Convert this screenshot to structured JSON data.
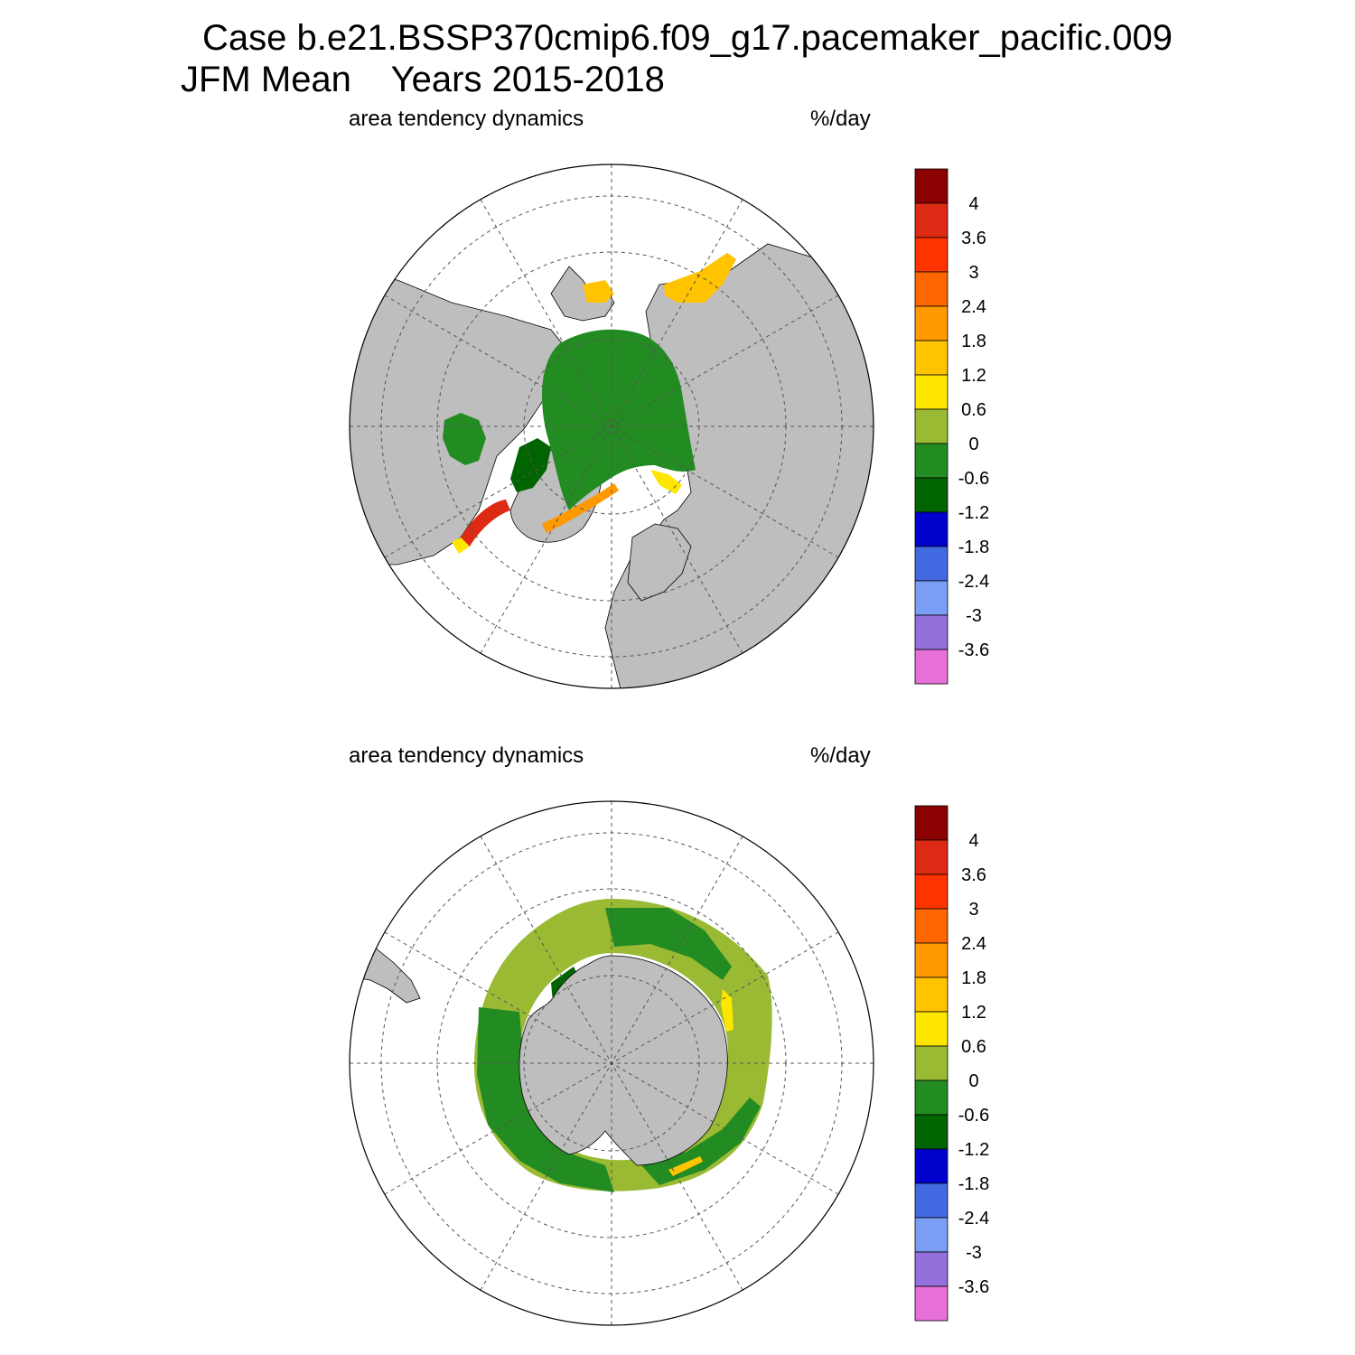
{
  "title": {
    "line1": "Case b.e21.BSSP370cmip6.f09_g17.pacemaker_pacific.009",
    "line2": "JFM Mean    Years 2015-2018"
  },
  "colors": {
    "land": "#bebebe",
    "ocean": "#ffffff",
    "grid": "#555555",
    "levels": [
      "#e670d8",
      "#9370db",
      "#7b9ef5",
      "#4169e1",
      "#0000cd",
      "#006400",
      "#228b22",
      "#9aba34",
      "#ffe600",
      "#ffc300",
      "#ff9900",
      "#ff6600",
      "#ff3300",
      "#dd2a14",
      "#8b0000"
    ]
  },
  "panels": [
    {
      "name": "northern-hemisphere",
      "left_label": "area tendency dynamics",
      "right_label": "%/day",
      "colorbar": {
        "labels": [
          "4",
          "3.6",
          "3",
          "2.4",
          "1.8",
          "1.2",
          "0.6",
          "0",
          "-0.6",
          "-1.2",
          "-1.8",
          "-2.4",
          "-3",
          "-3.6"
        ]
      }
    },
    {
      "name": "southern-hemisphere",
      "left_label": "area tendency dynamics",
      "right_label": "%/day",
      "colorbar": {
        "labels": [
          "4",
          "3.6",
          "3",
          "2.4",
          "1.8",
          "1.2",
          "0.6",
          "0",
          "-0.6",
          "-1.2",
          "-1.8",
          "-2.4",
          "-3",
          "-3.6"
        ]
      }
    }
  ]
}
